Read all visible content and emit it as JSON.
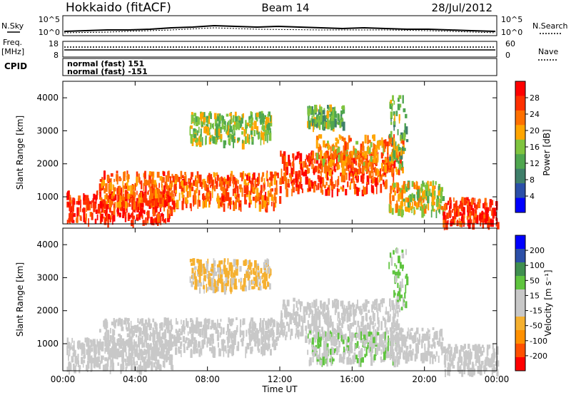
{
  "header": {
    "title": "Hokkaido (fitACF)",
    "beam": "Beam 14",
    "date": "28/Jul/2012"
  },
  "strips": {
    "nsky_label": "N.Sky",
    "nsky_ticks": [
      "10^5",
      "10^0"
    ],
    "nsearch_label": "N.Search",
    "freq_label_1": "Freq.",
    "freq_label_2": "[MHz]",
    "freq_ticks": [
      "18",
      "8"
    ],
    "nave_label": "Nave",
    "nave_ticks": [
      "60",
      "0"
    ],
    "cpid_label": "CPID",
    "cpid_lines": [
      "normal (fast) 151",
      "normal (fast) -151"
    ]
  },
  "colorbars": {
    "power": {
      "title": "Power [dB]",
      "ticks": [
        "28",
        "24",
        "20",
        "16",
        "12",
        "8",
        "4"
      ]
    },
    "velocity": {
      "title": "Velocity [m s⁻¹]",
      "ticks": [
        "200",
        "100",
        "50",
        "15",
        "-15",
        "-50",
        "-100",
        "-200"
      ]
    }
  },
  "chart_data": [
    {
      "type": "heatmap",
      "name": "power-range-time",
      "title": "Power [dB]",
      "xlabel": "Time UT",
      "ylabel": "Slant Range [km]",
      "x_ticks": [
        "00:00",
        "04:00",
        "08:00",
        "12:00",
        "16:00",
        "20:00",
        "00:00"
      ],
      "y_ticks": [
        "1000",
        "2000",
        "3000",
        "4000"
      ],
      "xlim_hours": [
        0,
        24
      ],
      "ylim_km": [
        180,
        4500
      ],
      "scale_range_db": [
        0,
        32
      ],
      "colors": [
        "#0000ff",
        "#2b4fa8",
        "#3f7f6a",
        "#4fa64f",
        "#7fc43f",
        "#ffa500",
        "#ff7000",
        "#ff3000",
        "#ff0000"
      ],
      "echo_bands": [
        {
          "t0": 0.2,
          "t1": 6.0,
          "r0": 300,
          "r1": 1200,
          "db": 28
        },
        {
          "t0": 2.0,
          "t1": 12.0,
          "r0": 800,
          "r1": 1800,
          "db": 24
        },
        {
          "t0": 12.0,
          "t1": 18.5,
          "r0": 1200,
          "r1": 2400,
          "db": 26
        },
        {
          "t0": 14.0,
          "t1": 18.8,
          "r0": 1800,
          "r1": 2900,
          "db": 22
        },
        {
          "t0": 7.0,
          "t1": 11.5,
          "r0": 2700,
          "r1": 3600,
          "db": 16
        },
        {
          "t0": 13.5,
          "t1": 15.5,
          "r0": 3200,
          "r1": 3800,
          "db": 14
        },
        {
          "t0": 18.0,
          "t1": 21.0,
          "r0": 600,
          "r1": 1500,
          "db": 18
        },
        {
          "t0": 21.0,
          "t1": 24.0,
          "r0": 200,
          "r1": 1000,
          "db": 28
        },
        {
          "t0": 18.0,
          "t1": 19.0,
          "r0": 2000,
          "r1": 4100,
          "db": 14
        }
      ]
    },
    {
      "type": "heatmap",
      "name": "velocity-range-time",
      "title": "Velocity [m s⁻¹]",
      "xlabel": "Time UT",
      "ylabel": "Slant Range [km]",
      "x_ticks": [
        "00:00",
        "04:00",
        "08:00",
        "12:00",
        "16:00",
        "20:00",
        "00:00"
      ],
      "y_ticks": [
        "1000",
        "2000",
        "3000",
        "4000"
      ],
      "xlim_hours": [
        0,
        24
      ],
      "ylim_km": [
        180,
        4500
      ],
      "scale_range_ms": [
        -250,
        250
      ],
      "colors": [
        "#ff0000",
        "#ff5000",
        "#ff9000",
        "#f5b030",
        "#c8c8c8",
        "#c8c8c8",
        "#5fc43f",
        "#3f8f4f",
        "#2b4fa8",
        "#0000ff"
      ],
      "echo_bands": [
        {
          "t0": 0.2,
          "t1": 6.0,
          "r0": 300,
          "r1": 1200,
          "v": 0
        },
        {
          "t0": 2.0,
          "t1": 12.0,
          "r0": 800,
          "r1": 1800,
          "v": 0
        },
        {
          "t0": 12.0,
          "t1": 18.5,
          "r0": 1200,
          "r1": 2400,
          "v": 0
        },
        {
          "t0": 7.0,
          "t1": 11.5,
          "r0": 2700,
          "r1": 3600,
          "v": -60
        },
        {
          "t0": 13.5,
          "t1": 18.5,
          "r0": 500,
          "r1": 1400,
          "v": 40
        },
        {
          "t0": 18.0,
          "t1": 21.0,
          "r0": 600,
          "r1": 1500,
          "v": 0
        },
        {
          "t0": 21.0,
          "t1": 24.0,
          "r0": 200,
          "r1": 1000,
          "v": 0
        },
        {
          "t0": 18.0,
          "t1": 19.0,
          "r0": 2000,
          "r1": 4100,
          "v": 60
        }
      ]
    }
  ]
}
